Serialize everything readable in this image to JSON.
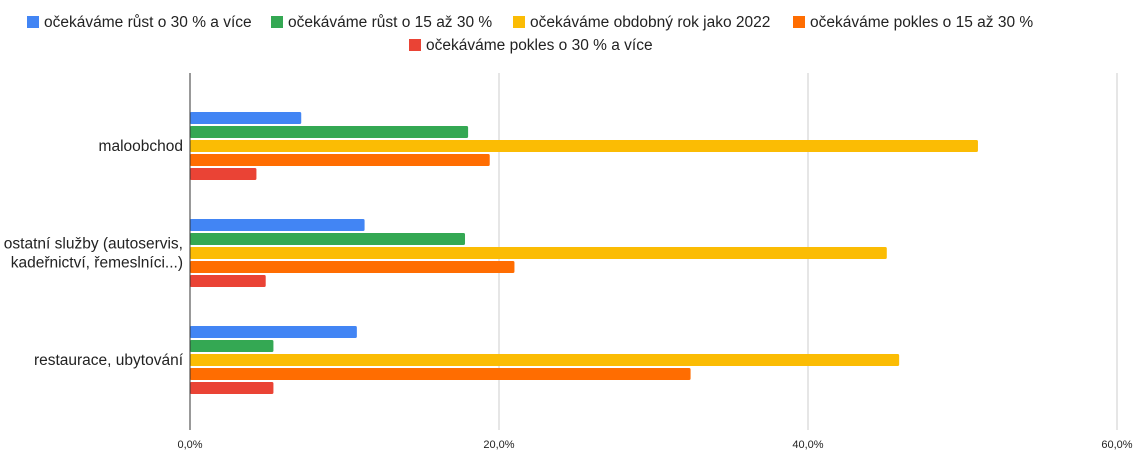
{
  "chart_data": {
    "type": "bar",
    "orientation": "horizontal",
    "categories": [
      [
        "maloobchod"
      ],
      [
        "ostatní služby (autoservis,",
        "kadeřnictví, řemeslníci...)"
      ],
      [
        "restaurace, ubytování"
      ]
    ],
    "series": [
      {
        "name": "očekáváme růst o 30 % a více",
        "color": "#4285f4",
        "values": [
          7.2,
          11.3,
          10.8
        ]
      },
      {
        "name": "očekáváme růst o 15 až 30 %",
        "color": "#34a853",
        "values": [
          18.0,
          17.8,
          5.4
        ]
      },
      {
        "name": "očekáváme obdobný rok jako 2022",
        "color": "#fbbc04",
        "values": [
          51.0,
          45.1,
          45.9
        ]
      },
      {
        "name": "očekáváme pokles o 15 až 30 %",
        "color": "#ff6d01",
        "values": [
          19.4,
          21.0,
          32.4
        ]
      },
      {
        "name": "očekáváme pokles o 30 % a více",
        "color": "#ea4335",
        "values": [
          4.3,
          4.9,
          5.4
        ]
      }
    ],
    "xlim": [
      0,
      60
    ],
    "xticks": [
      0,
      20,
      40,
      60
    ],
    "xtick_labels": [
      "0,0%",
      "20,0%",
      "40,0%",
      "60,0%"
    ],
    "grid": true,
    "legend_position": "top"
  }
}
